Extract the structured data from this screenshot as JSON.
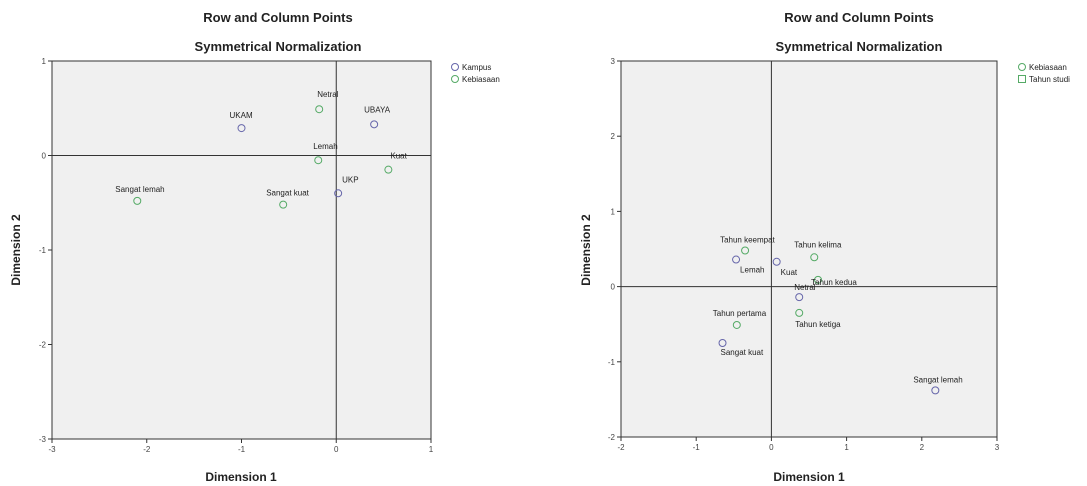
{
  "colors": {
    "background": "#f0f0f0",
    "series_1": "#6666aa",
    "series_2": "#55aa66"
  },
  "chart_data": [
    {
      "type": "scatter",
      "title": "Row and Column Points",
      "subtitle": "Symmetrical Normalization",
      "xlabel": "Dimension 1",
      "ylabel": "Dimension 2",
      "xlim": [
        -3,
        1
      ],
      "ylim": [
        -3,
        1
      ],
      "xticks": [
        -3,
        -2,
        -1,
        0,
        1
      ],
      "yticks": [
        1,
        0,
        -1,
        -2,
        -3
      ],
      "legend": "right-top",
      "grid": false,
      "series": [
        {
          "name": "Kampus",
          "points": [
            {
              "label": "UKAM",
              "x": -1.0,
              "y": 0.29
            },
            {
              "label": "UBAYA",
              "x": 0.4,
              "y": 0.33
            },
            {
              "label": "UKP",
              "x": 0.02,
              "y": -0.4
            }
          ]
        },
        {
          "name": "Kebiasaan",
          "points": [
            {
              "label": "Netral",
              "x": -0.18,
              "y": 0.49
            },
            {
              "label": "Lemah",
              "x": -0.19,
              "y": -0.05
            },
            {
              "label": "Kuat",
              "x": 0.55,
              "y": -0.15
            },
            {
              "label": "Sangat lemah",
              "x": -2.1,
              "y": -0.48
            },
            {
              "label": "Sangat kuat",
              "x": -0.56,
              "y": -0.52
            }
          ]
        }
      ]
    },
    {
      "type": "scatter",
      "title": "Row and Column Points",
      "subtitle": "Symmetrical Normalization",
      "xlabel": "Dimension 1",
      "ylabel": "Dimension 2",
      "xlim": [
        -2,
        3
      ],
      "ylim": [
        -2,
        3
      ],
      "xticks": [
        -2,
        -1,
        0,
        1,
        2,
        3
      ],
      "yticks": [
        3,
        2,
        1,
        0,
        -1,
        -2
      ],
      "legend": "right-top",
      "grid": false,
      "series": [
        {
          "name": "Kebiasaan",
          "points": [
            {
              "label": "Lemah",
              "x": -0.47,
              "y": 0.36
            },
            {
              "label": "Kuat",
              "x": 0.07,
              "y": 0.33
            },
            {
              "label": "Netral",
              "x": 0.37,
              "y": -0.14
            },
            {
              "label": "Sangat kuat",
              "x": -0.65,
              "y": -0.75
            },
            {
              "label": "Sangat lemah",
              "x": 2.18,
              "y": -1.38
            }
          ]
        },
        {
          "name": "Tahun studi",
          "points": [
            {
              "label": "Tahun keempat",
              "x": -0.35,
              "y": 0.48
            },
            {
              "label": "Tahun kelima",
              "x": 0.57,
              "y": 0.39
            },
            {
              "label": "Tahun kedua",
              "x": 0.62,
              "y": 0.09
            },
            {
              "label": "Tahun ketiga",
              "x": 0.37,
              "y": -0.35
            },
            {
              "label": "Tahun pertama",
              "x": -0.46,
              "y": -0.51
            }
          ]
        }
      ]
    }
  ]
}
